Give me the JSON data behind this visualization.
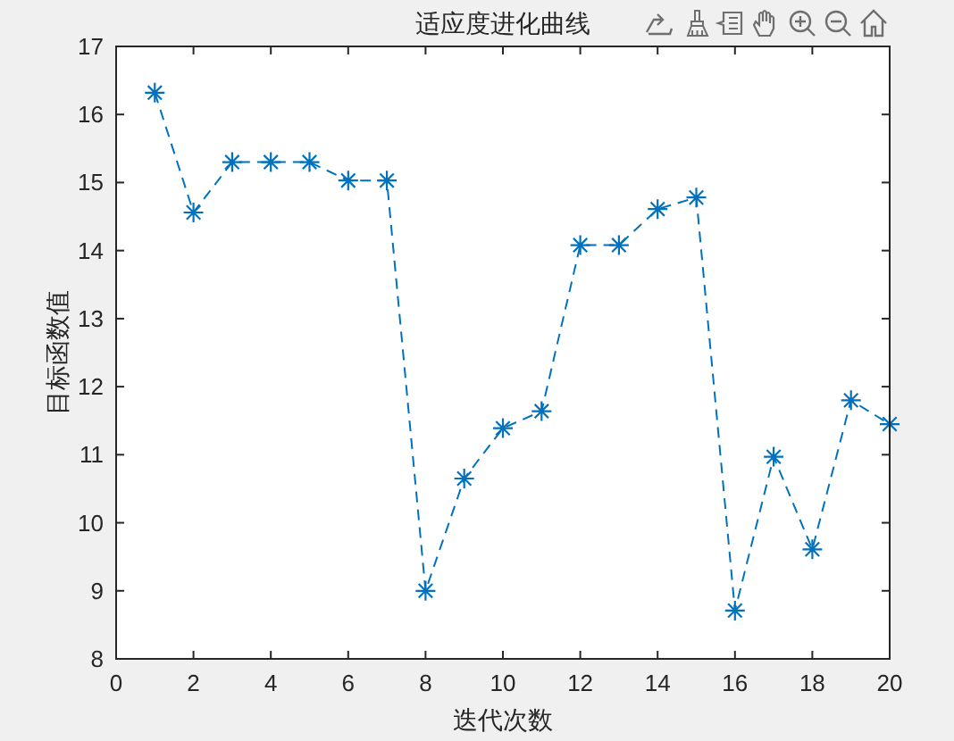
{
  "chart_data": {
    "type": "line",
    "title": "适应度进化曲线",
    "xlabel": "迭代次数",
    "ylabel": "目标函数值",
    "x": [
      1,
      2,
      3,
      4,
      5,
      6,
      7,
      8,
      9,
      10,
      11,
      12,
      13,
      14,
      15,
      16,
      17,
      18,
      19,
      20
    ],
    "series": [
      {
        "color": "#0072bd",
        "values": [
          16.32,
          14.56,
          15.3,
          15.3,
          15.3,
          15.03,
          15.03,
          9.0,
          10.65,
          11.39,
          11.64,
          14.08,
          14.08,
          14.61,
          14.78,
          8.71,
          10.97,
          9.61,
          11.8,
          11.45
        ]
      }
    ],
    "xlim": [
      0,
      20
    ],
    "xticks": [
      0,
      2,
      4,
      6,
      8,
      10,
      12,
      14,
      16,
      18,
      20
    ],
    "ylim": [
      8,
      17
    ],
    "yticks": [
      8,
      9,
      10,
      11,
      12,
      13,
      14,
      15,
      16,
      17
    ],
    "marker": "cross",
    "line_style": "dashed"
  }
}
